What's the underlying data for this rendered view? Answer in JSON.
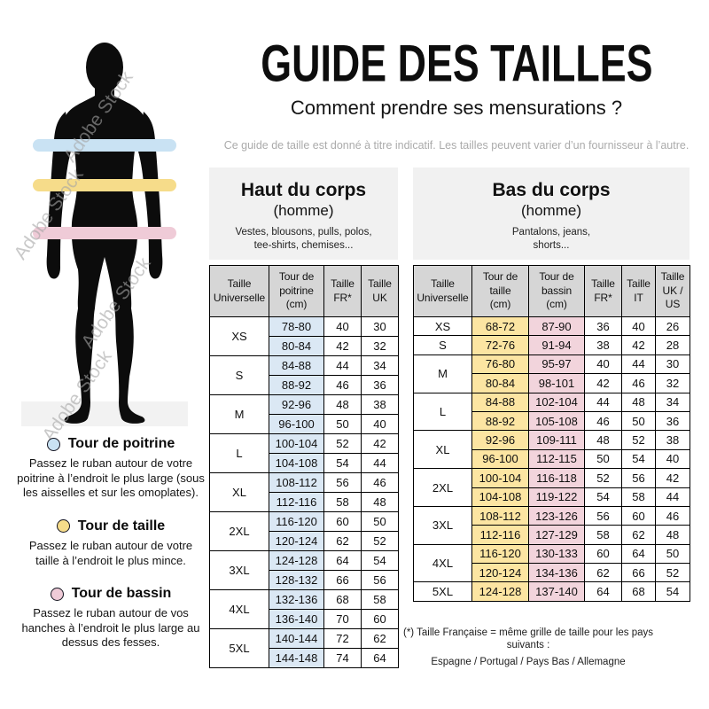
{
  "header": {
    "title": "GUIDE DES TAILLES",
    "subtitle": "Comment prendre ses mensurations ?",
    "note": "Ce guide de taille est donné à titre indicatif. Les tailles peuvent varier d’un fournisseur à l’autre."
  },
  "watermark": {
    "text": "Adobe Stock"
  },
  "figure": {
    "silhouette_color": "#0c0c0c",
    "bands": {
      "chest_color": "#C9E2F3",
      "waist_color": "#F6DC8A",
      "hip_color": "#EFCBD7"
    }
  },
  "legend": {
    "items": [
      {
        "title": "Tour de poitrine",
        "color": "#C9E2F3",
        "text": "Passez le ruban autour de votre poitrine à l’endroit le plus large (sous les aisselles et sur les omoplates)."
      },
      {
        "title": "Tour de taille",
        "color": "#F6DC8A",
        "text": "Passez le ruban autour de votre taille à l’endroit le plus mince."
      },
      {
        "title": "Tour de bassin",
        "color": "#EFCBD7",
        "text": "Passez le ruban autour de vos hanches à l’endroit le plus large au dessus des fesses."
      }
    ]
  },
  "upper_table": {
    "section_title": "Haut du corps",
    "section_subtitle": "(homme)",
    "section_desc": "Vestes, blousons, pulls, polos,\ntee-shirts, chemises...",
    "headers": [
      "Taille\nUniverselle",
      "Tour de\npoitrine\n(cm)",
      "Taille\nFR*",
      "Taille\nUK"
    ],
    "col_colors": [
      "#DBE8F4",
      null,
      null
    ],
    "groups": [
      {
        "size": "XS",
        "rows": [
          [
            "78-80",
            "40",
            "30"
          ],
          [
            "80-84",
            "42",
            "32"
          ]
        ]
      },
      {
        "size": "S",
        "rows": [
          [
            "84-88",
            "44",
            "34"
          ],
          [
            "88-92",
            "46",
            "36"
          ]
        ]
      },
      {
        "size": "M",
        "rows": [
          [
            "92-96",
            "48",
            "38"
          ],
          [
            "96-100",
            "50",
            "40"
          ]
        ]
      },
      {
        "size": "L",
        "rows": [
          [
            "100-104",
            "52",
            "42"
          ],
          [
            "104-108",
            "54",
            "44"
          ]
        ]
      },
      {
        "size": "XL",
        "rows": [
          [
            "108-112",
            "56",
            "46"
          ],
          [
            "112-116",
            "58",
            "48"
          ]
        ]
      },
      {
        "size": "2XL",
        "rows": [
          [
            "116-120",
            "60",
            "50"
          ],
          [
            "120-124",
            "62",
            "52"
          ]
        ]
      },
      {
        "size": "3XL",
        "rows": [
          [
            "124-128",
            "64",
            "54"
          ],
          [
            "128-132",
            "66",
            "56"
          ]
        ]
      },
      {
        "size": "4XL",
        "rows": [
          [
            "132-136",
            "68",
            "58"
          ],
          [
            "136-140",
            "70",
            "60"
          ]
        ]
      },
      {
        "size": "5XL",
        "rows": [
          [
            "140-144",
            "72",
            "62"
          ],
          [
            "144-148",
            "74",
            "64"
          ]
        ]
      }
    ]
  },
  "lower_table": {
    "section_title": "Bas du corps",
    "section_subtitle": "(homme)",
    "section_desc": "Pantalons, jeans,\nshorts...",
    "headers": [
      "Taille\nUniverselle",
      "Tour de\ntaille\n(cm)",
      "Tour de\nbassin\n(cm)",
      "Taille\nFR*",
      "Taille\nIT",
      "Taille\nUK /\nUS"
    ],
    "col_colors": [
      "#FCE5A2",
      "#F2D4DC",
      null,
      null,
      null
    ],
    "groups": [
      {
        "size": "XS",
        "rows": [
          [
            "68-72",
            "87-90",
            "36",
            "40",
            "26"
          ]
        ]
      },
      {
        "size": "S",
        "rows": [
          [
            "72-76",
            "91-94",
            "38",
            "42",
            "28"
          ]
        ]
      },
      {
        "size": "M",
        "rows": [
          [
            "76-80",
            "95-97",
            "40",
            "44",
            "30"
          ],
          [
            "80-84",
            "98-101",
            "42",
            "46",
            "32"
          ]
        ]
      },
      {
        "size": "L",
        "rows": [
          [
            "84-88",
            "102-104",
            "44",
            "48",
            "34"
          ],
          [
            "88-92",
            "105-108",
            "46",
            "50",
            "36"
          ]
        ]
      },
      {
        "size": "XL",
        "rows": [
          [
            "92-96",
            "109-111",
            "48",
            "52",
            "38"
          ],
          [
            "96-100",
            "112-115",
            "50",
            "54",
            "40"
          ]
        ]
      },
      {
        "size": "2XL",
        "rows": [
          [
            "100-104",
            "116-118",
            "52",
            "56",
            "42"
          ],
          [
            "104-108",
            "119-122",
            "54",
            "58",
            "44"
          ]
        ]
      },
      {
        "size": "3XL",
        "rows": [
          [
            "108-112",
            "123-126",
            "56",
            "60",
            "46"
          ],
          [
            "112-116",
            "127-129",
            "58",
            "62",
            "48"
          ]
        ]
      },
      {
        "size": "4XL",
        "rows": [
          [
            "116-120",
            "130-133",
            "60",
            "64",
            "50"
          ],
          [
            "120-124",
            "134-136",
            "62",
            "66",
            "52"
          ]
        ]
      },
      {
        "size": "5XL",
        "rows": [
          [
            "124-128",
            "137-140",
            "64",
            "68",
            "54"
          ]
        ]
      }
    ]
  },
  "footnote": {
    "line1": "(*) Taille Française = même grille de taille pour les pays suivants :",
    "line2": "Espagne / Portugal / Pays Bas / Allemagne"
  }
}
